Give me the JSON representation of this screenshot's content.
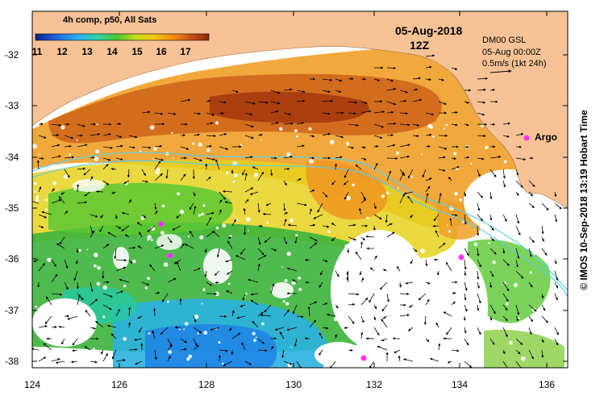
{
  "colorbar": {
    "title": "4h comp, p50, All Sats",
    "ticks": [
      "11",
      "12",
      "13",
      "14",
      "15",
      "16",
      "17"
    ],
    "colors": [
      "#0b1e8c",
      "#1e64e0",
      "#2bb3f0",
      "#2ed3a8",
      "#49c832",
      "#c8dc1e",
      "#f5c814",
      "#f08c14",
      "#c85014",
      "#8c280a"
    ]
  },
  "header": {
    "date": "05-Aug-2018",
    "time": "12Z"
  },
  "info": {
    "model": "DM00 GSL",
    "analysis_time": "05-Aug 00:00Z",
    "vector_scale": "0.5m/s (1kt 24h)"
  },
  "argo_label": "Argo",
  "credit": "© IMOS 10-Sep-2018 13:19 Hobart Time",
  "axes": {
    "lat_ticks": [
      "-32",
      "-33",
      "-34",
      "-35",
      "-36",
      "-37",
      "-38"
    ],
    "lon_ticks": [
      "124",
      "126",
      "128",
      "130",
      "132",
      "134",
      "136"
    ]
  },
  "colors": {
    "land": "#f7c396",
    "argo": "#ff33ff",
    "isobath": "#5cd0e8"
  }
}
